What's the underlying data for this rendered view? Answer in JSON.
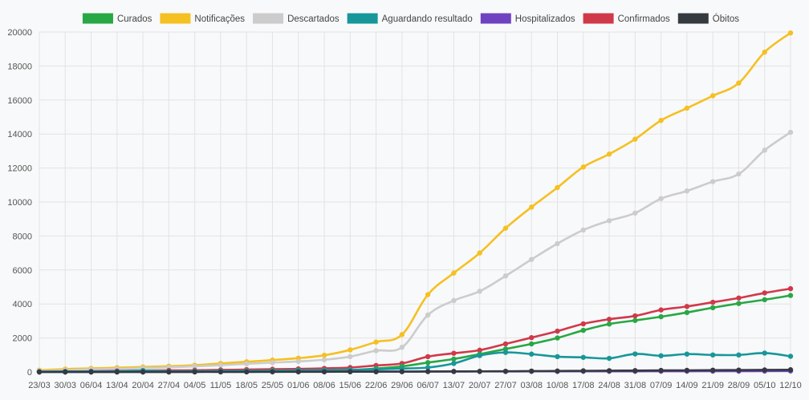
{
  "chart_data": {
    "type": "line",
    "categories": [
      "23/03",
      "30/03",
      "06/04",
      "13/04",
      "20/04",
      "27/04",
      "04/05",
      "11/05",
      "18/05",
      "25/05",
      "01/06",
      "08/06",
      "15/06",
      "22/06",
      "29/06",
      "06/07",
      "13/07",
      "20/07",
      "27/07",
      "03/08",
      "10/08",
      "17/08",
      "24/08",
      "31/08",
      "07/09",
      "14/09",
      "21/09",
      "28/09",
      "05/10",
      "12/10"
    ],
    "ylim": [
      0,
      20000
    ],
    "yticks": [
      0,
      2000,
      4000,
      6000,
      8000,
      10000,
      12000,
      14000,
      16000,
      18000,
      20000
    ],
    "grid": true,
    "legend_position": "top",
    "series": [
      {
        "name": "Curados",
        "color": "#28a745",
        "values": [
          0,
          0,
          0,
          0,
          0,
          10,
          20,
          30,
          40,
          50,
          60,
          80,
          110,
          200,
          330,
          550,
          760,
          1050,
          1350,
          1650,
          2000,
          2450,
          2820,
          3030,
          3250,
          3500,
          3780,
          4030,
          4250,
          4500
        ]
      },
      {
        "name": "Notificações",
        "color": "#f5c022",
        "values": [
          100,
          170,
          210,
          250,
          290,
          340,
          400,
          500,
          600,
          700,
          810,
          980,
          1300,
          1760,
          2200,
          4550,
          5820,
          7000,
          8460,
          9700,
          10850,
          12060,
          12820,
          13700,
          14800,
          15520,
          16250,
          17000,
          18820,
          19950
        ]
      },
      {
        "name": "Descartados",
        "color": "#cccccc",
        "values": [
          50,
          100,
          150,
          180,
          220,
          270,
          330,
          400,
          480,
          550,
          620,
          720,
          900,
          1250,
          1450,
          3350,
          4200,
          4750,
          5650,
          6620,
          7550,
          8350,
          8900,
          9350,
          10200,
          10650,
          11200,
          11650,
          13050,
          14100
        ]
      },
      {
        "name": "Aguardando resultado",
        "color": "#17979a",
        "values": [
          20,
          30,
          30,
          40,
          80,
          40,
          50,
          60,
          70,
          80,
          100,
          110,
          130,
          150,
          200,
          260,
          500,
          960,
          1150,
          1050,
          900,
          860,
          800,
          1060,
          950,
          1050,
          1000,
          1000,
          1110,
          920
        ]
      },
      {
        "name": "Hospitalizados",
        "color": "#6f42c1",
        "values": [
          0,
          0,
          0,
          5,
          5,
          5,
          5,
          10,
          10,
          10,
          15,
          15,
          20,
          20,
          20,
          25,
          25,
          30,
          30,
          35,
          35,
          40,
          40,
          40,
          45,
          45,
          50,
          50,
          55,
          60
        ]
      },
      {
        "name": "Confirmados",
        "color": "#d0394a",
        "values": [
          10,
          20,
          40,
          60,
          80,
          90,
          100,
          120,
          140,
          160,
          180,
          210,
          260,
          380,
          500,
          900,
          1100,
          1280,
          1650,
          2020,
          2400,
          2830,
          3100,
          3300,
          3650,
          3850,
          4100,
          4350,
          4650,
          4900
        ]
      },
      {
        "name": "Óbitos",
        "color": "#343a40",
        "values": [
          0,
          0,
          0,
          0,
          0,
          0,
          5,
          5,
          5,
          10,
          10,
          10,
          15,
          15,
          20,
          25,
          30,
          35,
          40,
          50,
          55,
          65,
          75,
          80,
          90,
          95,
          105,
          110,
          120,
          130
        ]
      }
    ]
  }
}
